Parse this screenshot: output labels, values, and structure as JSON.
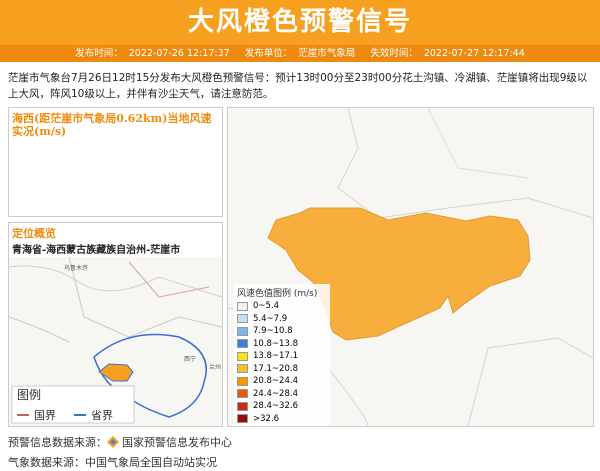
{
  "header": {
    "title": "大风橙色预警信号",
    "issue_time_label": "发布时间：",
    "issue_time": "2022-07-26 12:17:37",
    "issuer_label": "发布单位：",
    "issuer": "茫崖市气象局",
    "expire_label": "失效时间：",
    "expire_time": "2022-07-27 12:17:44"
  },
  "body": "茫崖市气象台7月26日12时15分发布大风橙色预警信号：预计13时00分至23时00分花土沟镇、冷湖镇、茫崖镇将出现9级以上大风，阵风10级以上，并伴有沙尘天气，请注意防范。",
  "wind_panel": {
    "title": "海西(距茫崖市气象局0.62km)当地风速实况(m/s)"
  },
  "location_panel": {
    "title": "定位概览",
    "region": "青海省-海西蒙古族藏族自治州-茫崖市",
    "map_labels": [
      "乌鲁木齐",
      "西宁",
      "兰州"
    ],
    "legend": {
      "title": "图例",
      "items": [
        "国界",
        "省界"
      ]
    }
  },
  "wind_legend": {
    "title": "风速色值图例 (m/s)",
    "items": [
      {
        "label": "0~5.4",
        "color": "#eef3f8"
      },
      {
        "label": "5.4~7.9",
        "color": "#c6ddf2"
      },
      {
        "label": "7.9~10.8",
        "color": "#7fb6ea"
      },
      {
        "label": "10.8~13.8",
        "color": "#3b7fd6"
      },
      {
        "label": "13.8~17.1",
        "color": "#f6e21a"
      },
      {
        "label": "17.1~20.8",
        "color": "#f6c02a"
      },
      {
        "label": "20.8~24.4",
        "color": "#f59b00"
      },
      {
        "label": "24.4~28.4",
        "color": "#e65a0a"
      },
      {
        "label": "28.4~32.6",
        "color": "#cc2a10"
      },
      {
        "label": ">32.6",
        "color": "#9a0a0a"
      }
    ]
  },
  "footer": {
    "warning_source_label": "预警信息数据来源：",
    "warning_source": "国家预警信息发布中心",
    "weather_source_label": "气象数据来源：",
    "weather_source": "中国气象局全国自动站实况"
  }
}
